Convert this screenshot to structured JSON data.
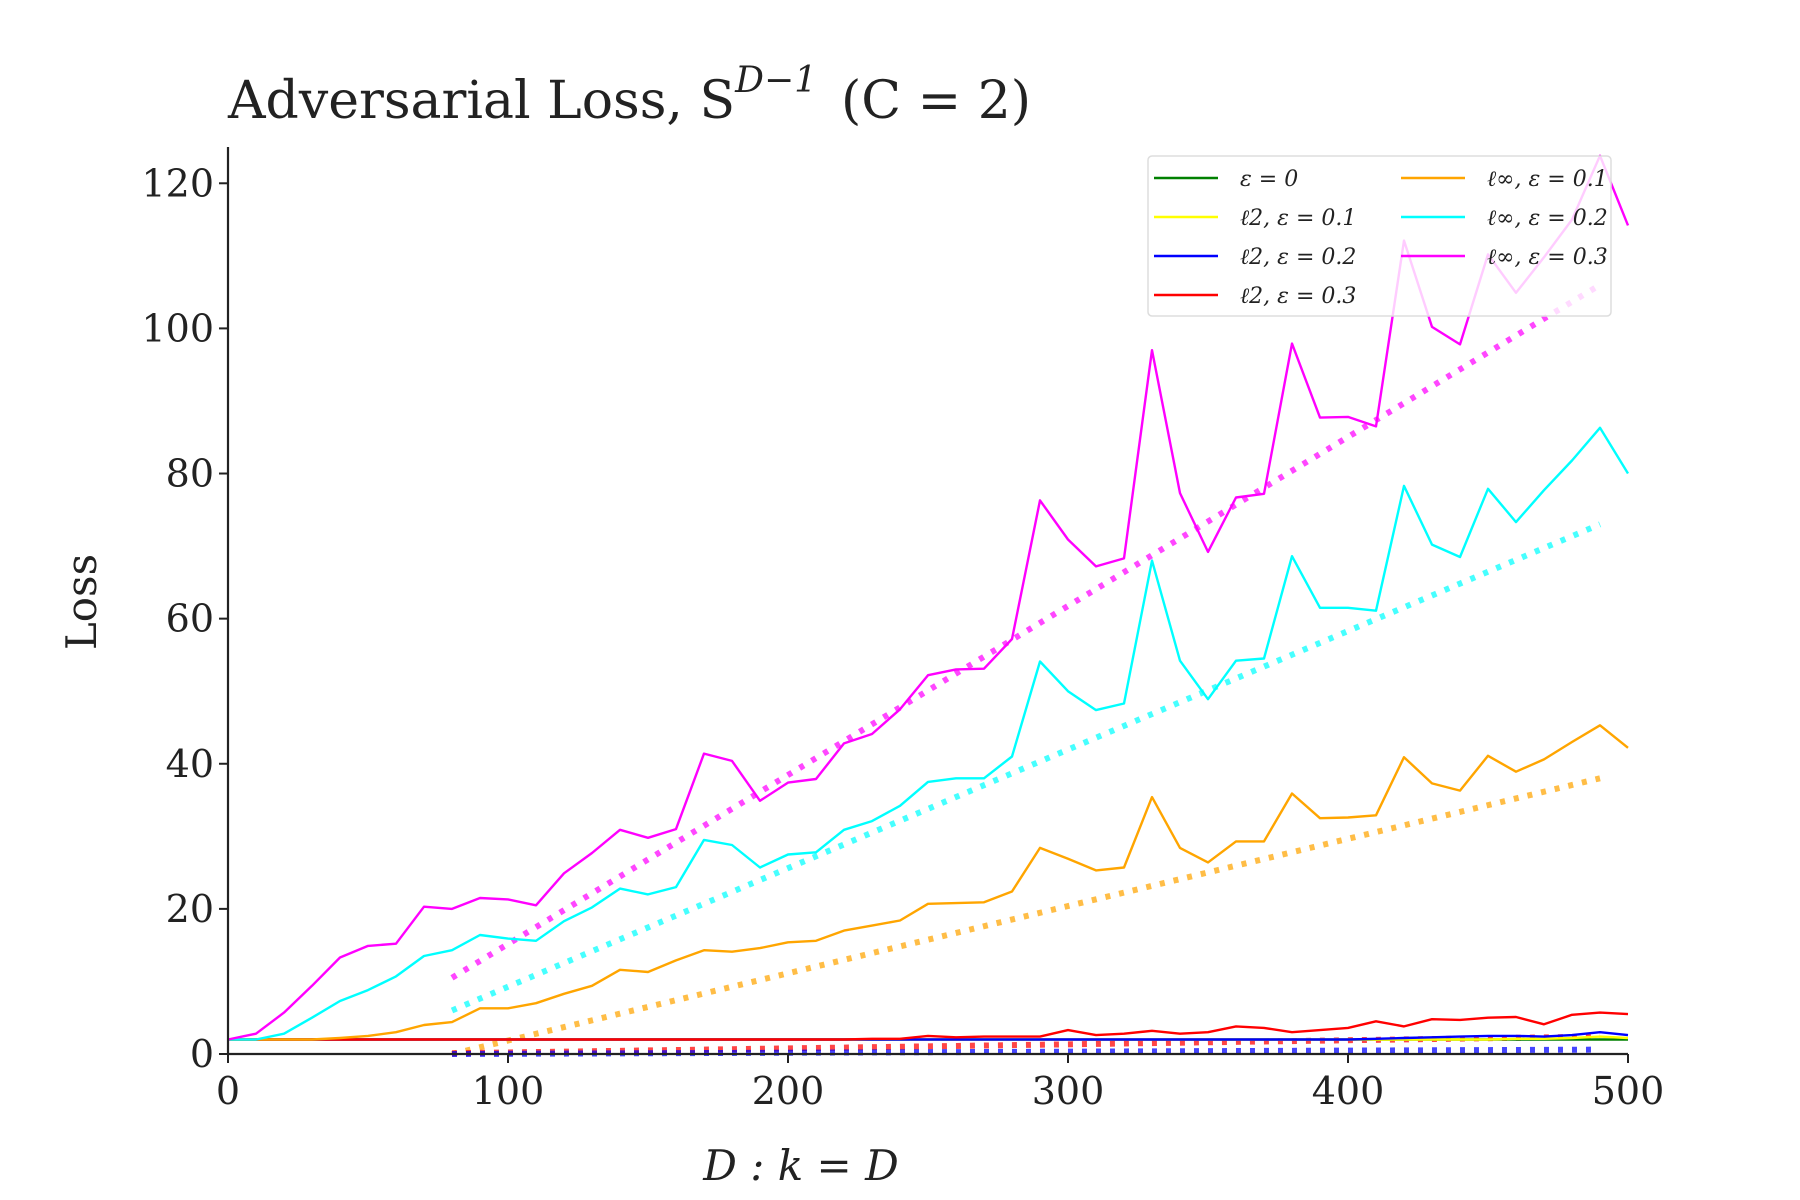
{
  "chart_data": {
    "type": "line",
    "title": "Adversarial Loss, S",
    "title_sup": "D−1",
    "title_suffix": "(C = 2)",
    "xlabel": "D : k = D",
    "ylabel": "Loss",
    "xlim": [
      0,
      500
    ],
    "ylim": [
      0,
      125
    ],
    "xticks": [
      0,
      100,
      200,
      300,
      400,
      500
    ],
    "yticks": [
      0,
      20,
      40,
      60,
      80,
      100,
      120
    ],
    "grid": false,
    "legend_position": "top-right",
    "legend_columns": 2,
    "x": [
      0,
      10,
      20,
      30,
      40,
      50,
      60,
      70,
      80,
      90,
      100,
      110,
      120,
      130,
      140,
      150,
      160,
      170,
      180,
      190,
      200,
      210,
      220,
      230,
      240,
      250,
      260,
      270,
      280,
      290,
      300,
      310,
      320,
      330,
      340,
      350,
      360,
      370,
      380,
      390,
      400,
      410,
      420,
      430,
      440,
      450,
      460,
      470,
      480,
      490,
      500
    ],
    "series": [
      {
        "name": "ε = 0",
        "color": "#008000",
        "style": "solid",
        "values": [
          2,
          2,
          2,
          2,
          2,
          2,
          2,
          2,
          2,
          2,
          2,
          2,
          2,
          2,
          2,
          2,
          2,
          2,
          2,
          2,
          2,
          2,
          2,
          2,
          2,
          2,
          2,
          2,
          2,
          2,
          2,
          2,
          2,
          2,
          2,
          2,
          2,
          2,
          2,
          2,
          2,
          2,
          2,
          2,
          2,
          2,
          2,
          2,
          2,
          2,
          2
        ]
      },
      {
        "name": "ℓ2, ε = 0.1",
        "color": "#ffff00",
        "style": "solid",
        "values": [
          2,
          2,
          2,
          2,
          2,
          2,
          2,
          2,
          2,
          2,
          2,
          2,
          2,
          2,
          2,
          2,
          2,
          2,
          2,
          2,
          2,
          2,
          2,
          2,
          2,
          2,
          2,
          2,
          2,
          2,
          2,
          2,
          2,
          2,
          2,
          2,
          2,
          2,
          2,
          2,
          2,
          2,
          2,
          2,
          2,
          2,
          2.1,
          2.1,
          2.2,
          2.4,
          2.2
        ]
      },
      {
        "name": "ℓ2, ε = 0.2",
        "color": "#0000ff",
        "style": "solid",
        "values": [
          2,
          2,
          2,
          2,
          2,
          2,
          2,
          2,
          2,
          2,
          2,
          2,
          2,
          2,
          2,
          2,
          2,
          2,
          2,
          2,
          2,
          2,
          2,
          2,
          2,
          2,
          2,
          2,
          2,
          2,
          2,
          2,
          2,
          2,
          2,
          2,
          2,
          2,
          2,
          2,
          2,
          2.1,
          2.2,
          2.3,
          2.4,
          2.5,
          2.5,
          2.4,
          2.6,
          3.0,
          2.6
        ]
      },
      {
        "name": "ℓ2, ε = 0.3",
        "color": "#ff0000",
        "style": "solid",
        "values": [
          2,
          2,
          2,
          2,
          2,
          2,
          2,
          2,
          2,
          2,
          2,
          2,
          2,
          2,
          2,
          2,
          2,
          2,
          2,
          2,
          2,
          2,
          2,
          2.1,
          2.1,
          2.5,
          2.3,
          2.4,
          2.4,
          2.4,
          3.3,
          2.6,
          2.8,
          3.2,
          2.8,
          3.0,
          3.8,
          3.6,
          3.0,
          3.3,
          3.6,
          4.5,
          3.8,
          4.8,
          4.7,
          5.0,
          5.1,
          4.1,
          5.4,
          5.7,
          5.5
        ]
      },
      {
        "name": "ℓ∞, ε = 0.1",
        "color": "#ffa500",
        "style": "solid",
        "values": [
          2,
          2,
          2,
          2,
          2.2,
          2.5,
          3.0,
          4.0,
          4.4,
          6.3,
          6.3,
          7.0,
          8.3,
          9.4,
          11.6,
          11.3,
          12.9,
          14.3,
          14.1,
          14.6,
          15.4,
          15.6,
          17.0,
          17.7,
          18.4,
          20.7,
          20.8,
          20.9,
          22.4,
          28.4,
          26.9,
          25.3,
          25.7,
          35.4,
          28.4,
          26.4,
          29.3,
          29.3,
          35.9,
          32.5,
          32.6,
          32.9,
          40.9,
          37.3,
          36.3,
          41.1,
          38.9,
          40.6,
          43.0,
          45.3,
          42.2
        ]
      },
      {
        "name": "ℓ∞, ε = 0.2",
        "color": "#00ffff",
        "style": "solid",
        "values": [
          2,
          2,
          2.8,
          5.0,
          7.3,
          8.8,
          10.7,
          13.5,
          14.3,
          16.4,
          15.9,
          15.6,
          18.3,
          20.2,
          22.8,
          22.0,
          23.0,
          29.5,
          28.8,
          25.7,
          27.5,
          27.8,
          30.9,
          32.1,
          34.2,
          37.5,
          38.0,
          38.0,
          41.0,
          54.1,
          50.0,
          47.4,
          48.3,
          68.0,
          54.2,
          48.9,
          54.2,
          54.5,
          68.6,
          61.5,
          61.5,
          61.1,
          78.3,
          70.2,
          68.5,
          77.9,
          73.3,
          77.7,
          81.8,
          86.3,
          80.0
        ]
      },
      {
        "name": "ℓ∞, ε = 0.3",
        "color": "#ff00ff",
        "style": "solid",
        "values": [
          2,
          2.8,
          5.7,
          9.4,
          13.3,
          14.9,
          15.2,
          20.3,
          20.0,
          21.5,
          21.3,
          20.5,
          24.9,
          27.7,
          30.9,
          29.8,
          31.0,
          41.4,
          40.4,
          34.9,
          37.4,
          37.9,
          42.8,
          44.1,
          47.5,
          52.2,
          53.0,
          53.1,
          57.2,
          76.3,
          70.9,
          67.2,
          68.3,
          97.0,
          77.3,
          69.2,
          76.7,
          77.2,
          97.9,
          87.7,
          87.8,
          86.5,
          112.1,
          100.2,
          97.8,
          110.2,
          104.9,
          109.8,
          115.0,
          123.8,
          114.2
        ]
      }
    ],
    "fit_lines": [
      {
        "color": "#ffa500",
        "style": "dotted",
        "x": [
          80,
          490
        ],
        "values": [
          0,
          38
        ]
      },
      {
        "color": "#00ffff",
        "style": "dotted",
        "x": [
          80,
          490
        ],
        "values": [
          6,
          73
        ]
      },
      {
        "color": "#ff00ff",
        "style": "dotted",
        "x": [
          80,
          490
        ],
        "values": [
          10.5,
          106
        ]
      },
      {
        "color": "#ff0000",
        "style": "dotted",
        "x": [
          80,
          490
        ],
        "values": [
          0.1,
          2.4
        ]
      },
      {
        "color": "#0000ff",
        "style": "dotted",
        "x": [
          80,
          490
        ],
        "values": [
          0,
          0.6
        ]
      }
    ]
  }
}
